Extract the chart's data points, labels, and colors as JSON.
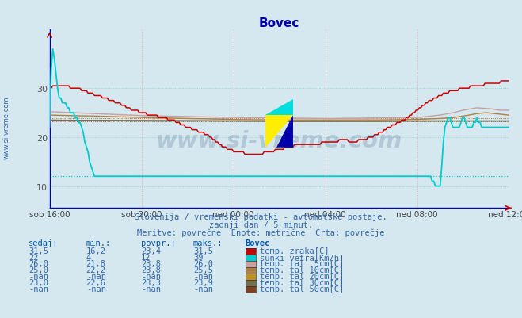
{
  "title": "Bovec",
  "bg_color": "#d5e8f0",
  "plot_bg_color": "#d5e8f0",
  "ylim": [
    5.5,
    42
  ],
  "yticks": [
    10,
    20,
    30
  ],
  "xlabel_ticks": [
    "sob 16:00",
    "sob 20:00",
    "ned 00:00",
    "ned 04:00",
    "ned 08:00",
    "ned 12:00"
  ],
  "n_points": 288,
  "series": {
    "temp_zraka": {
      "color": "#cc0000",
      "label": "temp. zraka[C]",
      "avg": 23.4,
      "min": 16.2,
      "max": 31.5,
      "sedaj": "31,5"
    },
    "sunki_vetra": {
      "color": "#00cccc",
      "label": "sunki vetra[Km/h]",
      "avg": 12,
      "min": 4,
      "max": 39,
      "sedaj": "22"
    },
    "tal_5cm": {
      "color": "#c8a0a0",
      "label": "temp. tal  5cm[C]",
      "avg": 23.8,
      "min": 21.8,
      "max": 26.0,
      "sedaj": "26,0"
    },
    "tal_10cm": {
      "color": "#b08040",
      "label": "temp. tal 10cm[C]",
      "avg": 23.8,
      "min": 22.2,
      "max": 25.5,
      "sedaj": "25,0"
    },
    "tal_20cm": {
      "color": "#c09020",
      "label": "temp. tal 20cm[C]",
      "avg": -999,
      "min": -999,
      "max": -999,
      "sedaj": "-nan"
    },
    "tal_30cm": {
      "color": "#707050",
      "label": "temp. tal 30cm[C]",
      "avg": 23.3,
      "min": 22.6,
      "max": 23.9,
      "sedaj": "23,0"
    },
    "tal_50cm": {
      "color": "#804020",
      "label": "temp. tal 50cm[C]",
      "avg": -999,
      "min": -999,
      "max": -999,
      "sedaj": "-nan"
    }
  },
  "table_rows": [
    {
      "sedaj": "31,5",
      "min": "16,2",
      "povpr": "23,4",
      "maks": "31,5",
      "label": "temp. zraka[C]",
      "color": "#cc0000"
    },
    {
      "sedaj": "22",
      "min": "4",
      "povpr": "12",
      "maks": "39",
      "label": "sunki vetra[Km/h]",
      "color": "#00cccc"
    },
    {
      "sedaj": "26,0",
      "min": "21,8",
      "povpr": "23,8",
      "maks": "26,0",
      "label": "temp. tal  5cm[C]",
      "color": "#c8a0a0"
    },
    {
      "sedaj": "25,0",
      "min": "22,2",
      "povpr": "23,8",
      "maks": "25,5",
      "label": "temp. tal 10cm[C]",
      "color": "#b08040"
    },
    {
      "sedaj": "-nan",
      "min": "-nan",
      "povpr": "-nan",
      "maks": "-nan",
      "label": "temp. tal 20cm[C]",
      "color": "#c09020"
    },
    {
      "sedaj": "23,0",
      "min": "22,6",
      "povpr": "23,3",
      "maks": "23,9",
      "label": "temp. tal 30cm[C]",
      "color": "#707050"
    },
    {
      "sedaj": "-nan",
      "min": "-nan",
      "povpr": "-nan",
      "maks": "-nan",
      "label": "temp. tal 50cm[C]",
      "color": "#804020"
    }
  ],
  "col_headers": [
    "sedaj:",
    "min.:",
    "povpr.:",
    "maks.:",
    "Bovec"
  ],
  "subtitle1": "Slovenija / vremenski podatki - avtomatske postaje.",
  "subtitle2": "zadnji dan / 5 minut.",
  "subtitle3": "Meritve: povrečne  Enote: metrične  Črta: povrečje",
  "watermark": "www.si-vreme.com",
  "sidebar": "www.si-vreme.com"
}
